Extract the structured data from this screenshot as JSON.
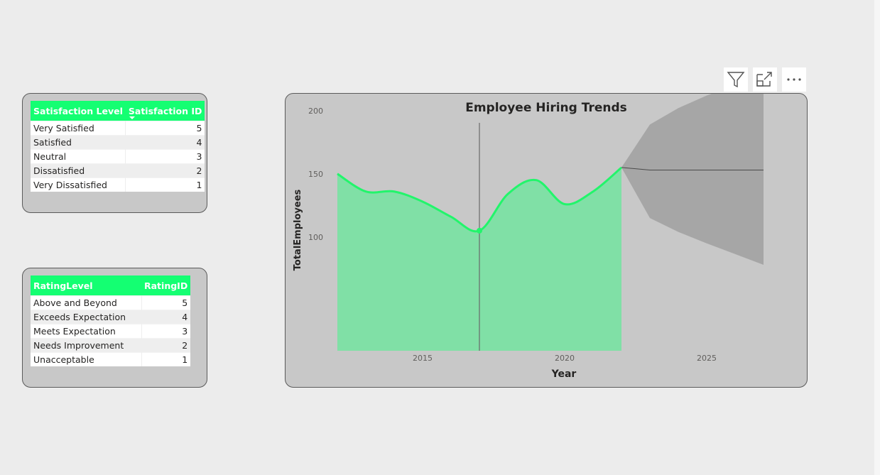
{
  "toolbar": {
    "filter_icon": "filter-icon",
    "focus_icon": "focus-mode-icon",
    "more_icon": "more-options-icon"
  },
  "satisfaction_table": {
    "columns": [
      "Satisfaction Level",
      "Satisfaction ID"
    ],
    "rows": [
      [
        "Very Satisfied",
        "5"
      ],
      [
        "Satisfied",
        "4"
      ],
      [
        "Neutral",
        "3"
      ],
      [
        "Dissatisfied",
        "2"
      ],
      [
        "Very Dissatisfied",
        "1"
      ]
    ]
  },
  "rating_table": {
    "columns": [
      "RatingLevel",
      "RatingID"
    ],
    "rows": [
      [
        "Above and Beyond",
        "5"
      ],
      [
        "Exceeds Expectation",
        "4"
      ],
      [
        "Meets Expectation",
        "3"
      ],
      [
        "Needs Improvement",
        "2"
      ],
      [
        "Unacceptable",
        "1"
      ]
    ]
  },
  "chart_data": {
    "type": "area",
    "title": "Employee Hiring Trends",
    "xlabel": "Year",
    "ylabel": "TotalEmployees",
    "x_ticks": [
      "2015",
      "2020",
      "2025"
    ],
    "y_ticks": [
      "100",
      "150",
      "200"
    ],
    "xlim": [
      2011.5,
      2028
    ],
    "ylim": [
      80,
      220
    ],
    "series": [
      {
        "values": [
          {
            "x": 2012,
            "y": 150
          },
          {
            "x": 2013,
            "y": 136
          },
          {
            "x": 2014,
            "y": 136
          },
          {
            "x": 2015,
            "y": 128
          },
          {
            "x": 2016,
            "y": 116
          },
          {
            "x": 2017,
            "y": 105
          },
          {
            "x": 2018,
            "y": 134
          },
          {
            "x": 2019,
            "y": 145
          },
          {
            "x": 2020,
            "y": 126
          },
          {
            "x": 2021,
            "y": 136
          },
          {
            "x": 2022,
            "y": 155
          }
        ]
      }
    ],
    "forecast": {
      "values": [
        {
          "x": 2022,
          "y": 155
        },
        {
          "x": 2023,
          "y": 153
        },
        {
          "x": 2025,
          "y": 153
        },
        {
          "x": 2027,
          "y": 153
        }
      ],
      "upper": [
        {
          "x": 2022,
          "y": 155
        },
        {
          "x": 2023,
          "y": 189
        },
        {
          "x": 2024,
          "y": 202
        },
        {
          "x": 2025,
          "y": 212
        },
        {
          "x": 2027,
          "y": 228
        }
      ],
      "lower": [
        {
          "x": 2022,
          "y": 155
        },
        {
          "x": 2023,
          "y": 115
        },
        {
          "x": 2024,
          "y": 104
        },
        {
          "x": 2025,
          "y": 95
        },
        {
          "x": 2027,
          "y": 78
        }
      ]
    },
    "highlight_x": 2017,
    "grid": false,
    "colors": {
      "line": "#22f56b",
      "area": "#80e0a6",
      "forecast_band": "#a6a6a6",
      "forecast_line": "#4a4a4a",
      "reference_line": "#6a6a6a",
      "background": "#cbcbcb"
    }
  }
}
